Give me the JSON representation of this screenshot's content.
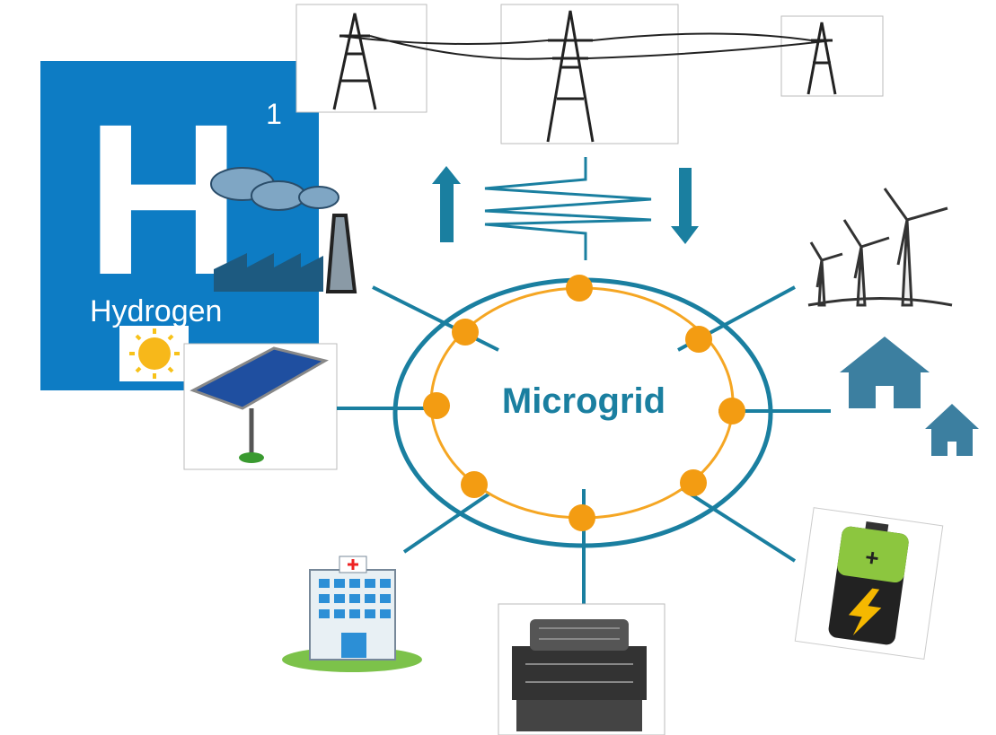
{
  "hydrogen": {
    "symbol": "H",
    "number": "1",
    "name": "Hydrogen"
  },
  "center": {
    "label": "Microgrid"
  },
  "battery": {
    "sign": "+"
  }
}
